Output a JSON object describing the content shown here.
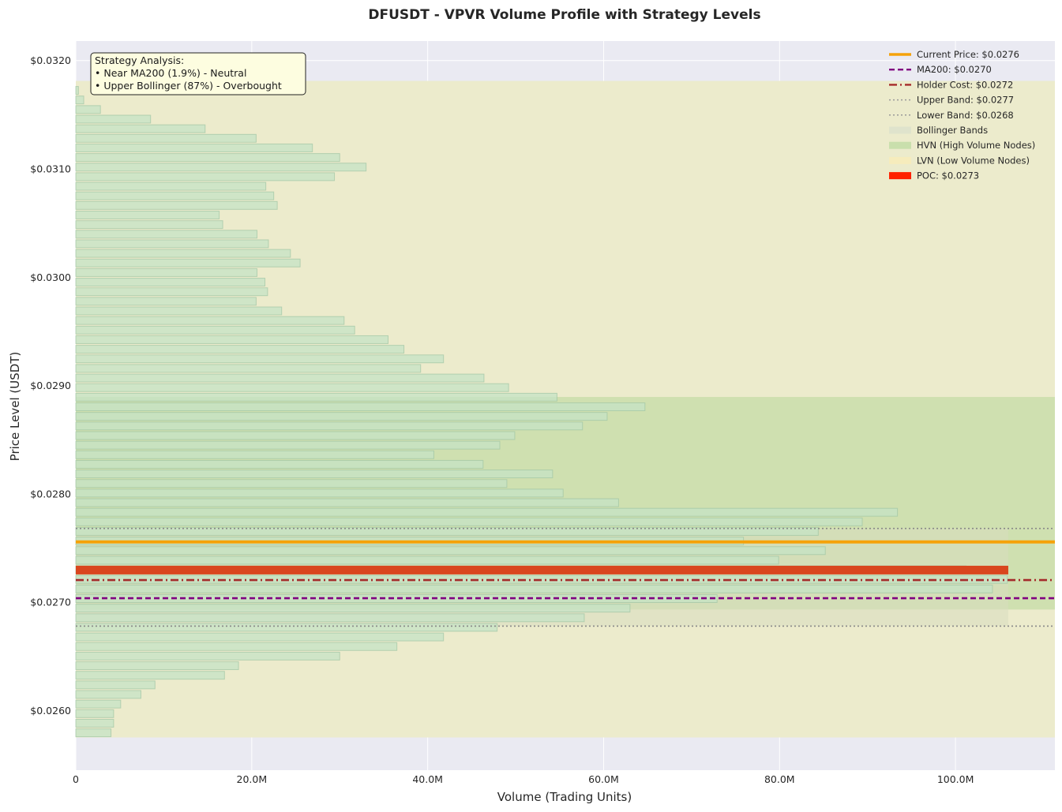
{
  "chart_data": {
    "type": "bar",
    "orientation": "horizontal",
    "title": "DFUSDT - VPVR Volume Profile with Strategy Levels",
    "xlabel": "Volume (Trading Units)",
    "ylabel": "Price Level (USDT)",
    "xlim": [
      0,
      111.3
    ],
    "ylim": [
      0.02545,
      0.03218
    ],
    "x_unit": "M",
    "x_ticks": [
      {
        "value": 0,
        "label": "0"
      },
      {
        "value": 20,
        "label": "20.0M"
      },
      {
        "value": 40,
        "label": "40.0M"
      },
      {
        "value": 60,
        "label": "60.0M"
      },
      {
        "value": 80,
        "label": "80.0M"
      },
      {
        "value": 100,
        "label": "100.0M"
      }
    ],
    "y_ticks": [
      {
        "value": 0.026,
        "label": "$0.0260"
      },
      {
        "value": 0.027,
        "label": "$0.0270"
      },
      {
        "value": 0.028,
        "label": "$0.0280"
      },
      {
        "value": 0.029,
        "label": "$0.0290"
      },
      {
        "value": 0.03,
        "label": "$0.0300"
      },
      {
        "value": 0.031,
        "label": "$0.0310"
      },
      {
        "value": 0.032,
        "label": "$0.0320"
      }
    ],
    "grid": true,
    "legend_position": "top-right",
    "volume_profile": {
      "price_start": 0.025795,
      "price_step": 8.85e-05,
      "bar_color": "#c5e3c5",
      "volumes_millions": [
        4.0,
        4.3,
        4.3,
        5.1,
        7.4,
        9.0,
        16.9,
        18.5,
        30.0,
        36.5,
        41.8,
        47.9,
        57.8,
        63.0,
        72.9,
        104.2,
        105.9,
        101.2,
        79.9,
        85.2,
        75.9,
        84.4,
        89.4,
        93.4,
        61.7,
        55.4,
        49.0,
        54.2,
        46.3,
        40.7,
        48.2,
        49.9,
        57.6,
        60.4,
        64.7,
        54.7,
        49.2,
        46.4,
        39.2,
        41.8,
        37.3,
        35.5,
        31.7,
        30.5,
        23.4,
        20.5,
        21.8,
        21.5,
        20.6,
        25.5,
        24.4,
        21.9,
        20.6,
        16.7,
        16.3,
        22.9,
        22.5,
        21.6,
        29.4,
        33.0,
        30.0,
        26.9,
        20.5,
        14.7,
        8.5,
        2.8,
        0.9,
        0.3
      ]
    },
    "zones": {
      "lvn_range": [
        0.025752,
        0.031812
      ],
      "hvn_range": [
        0.026933,
        0.028895
      ],
      "bollinger_range": [
        0.02678,
        0.027681
      ],
      "bollinger_x_extent": 106.0
    },
    "levels": [
      {
        "name": "Current Price: $0.0276",
        "value": 0.027557,
        "color": "#f5a20a",
        "style": "solid"
      },
      {
        "name": "MA200: $0.0270",
        "value": 0.027037,
        "color": "#800080",
        "style": "dashed"
      },
      {
        "name": "Holder Cost: $0.0272",
        "value": 0.027205,
        "color": "#a52a2a",
        "style": "dashdot"
      },
      {
        "name": "Upper Band: $0.0277",
        "value": 0.027681,
        "color": "#888888",
        "style": "dotted"
      },
      {
        "name": "Lower Band: $0.0268",
        "value": 0.02678,
        "color": "#888888",
        "style": "dotted"
      }
    ],
    "poc": {
      "name": "POC: $0.0273",
      "value": 0.027297,
      "volume": 106.0,
      "color": "#d9461e"
    },
    "legend": [
      {
        "label": "Current Price: $0.0276",
        "kind": "solid",
        "color": "#f5a20a"
      },
      {
        "label": "MA200: $0.0270",
        "kind": "dashed",
        "color": "#800080"
      },
      {
        "label": "Holder Cost: $0.0272",
        "kind": "dashdot",
        "color": "#a52a2a"
      },
      {
        "label": "Upper Band: $0.0277",
        "kind": "dotted",
        "color": "#999999"
      },
      {
        "label": "Lower Band: $0.0268",
        "kind": "dotted",
        "color": "#999999"
      },
      {
        "label": "Bollinger Bands",
        "kind": "patch",
        "color": "#dfe3cc"
      },
      {
        "label": "HVN (High Volume Nodes)",
        "kind": "patch",
        "color": "#c9dfac"
      },
      {
        "label": "LVN (Low Volume Nodes)",
        "kind": "patch",
        "color": "#f6ecbc"
      },
      {
        "label": "POC: $0.0273",
        "kind": "patch",
        "color": "#ff2200"
      }
    ],
    "annotation": {
      "lines": [
        "Strategy Analysis:",
        "• Near MA200 (1.9%) - Neutral",
        "• Upper Bollinger (87%) - Overbought"
      ],
      "position": "top-left"
    },
    "colors": {
      "plot_background": "#eaeaf2",
      "lvn_fill": "#ecebcc",
      "hvn_fill": "#cfe0b0",
      "bollinger_fill": "#d8dcc0"
    }
  }
}
